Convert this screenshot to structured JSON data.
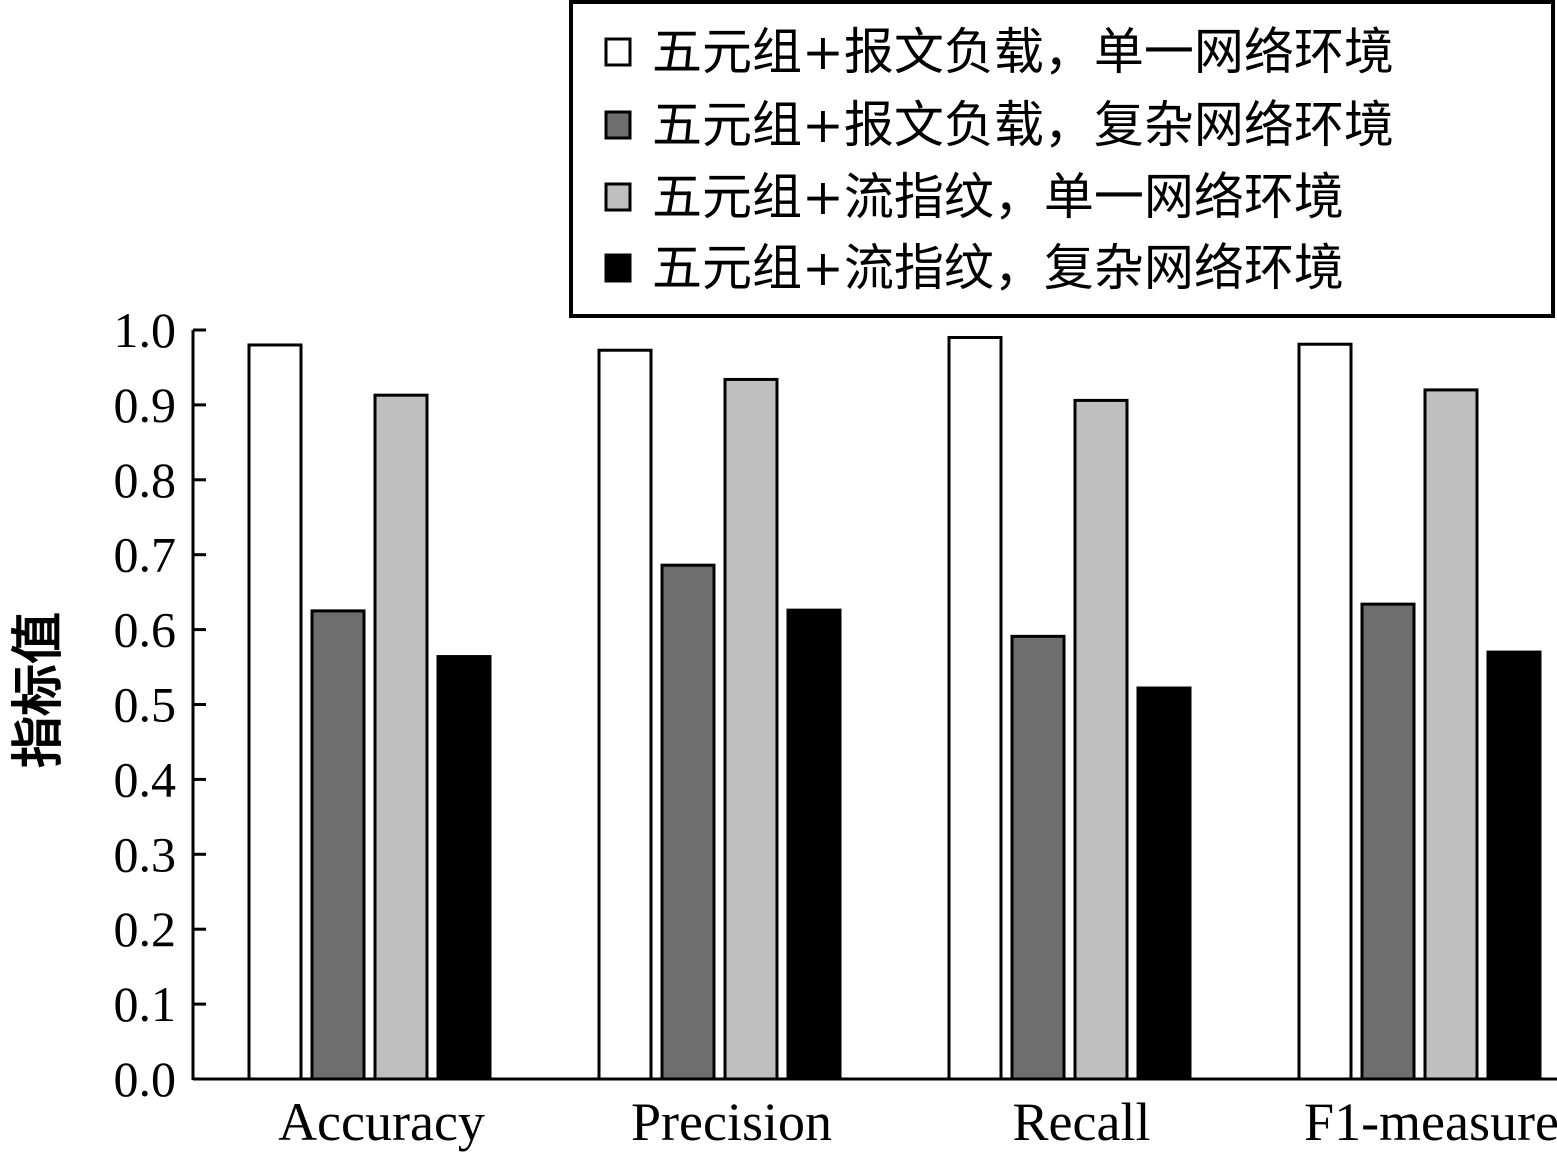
{
  "chart_data": {
    "type": "bar",
    "title": "",
    "xlabel": "",
    "ylabel": "指标值",
    "ylim": [
      0,
      1.0
    ],
    "yticks": [
      "0.0",
      "0.1",
      "0.2",
      "0.3",
      "0.4",
      "0.5",
      "0.6",
      "0.7",
      "0.8",
      "0.9",
      "1.0"
    ],
    "categories": [
      "Accuracy",
      "Precision",
      "Recall",
      "F1-measure"
    ],
    "legend_position": "top-right",
    "grid": false,
    "series": [
      {
        "name": "五元组+报文负载，单一网络环境",
        "color": "#ffffff",
        "values": [
          0.98,
          0.973,
          0.99,
          0.981
        ]
      },
      {
        "name": "五元组+报文负载，复杂网络环境",
        "color": "#6e6e6e",
        "values": [
          0.625,
          0.686,
          0.591,
          0.634
        ]
      },
      {
        "name": "五元组+流指纹，单一网络环境",
        "color": "#bfbfbf",
        "values": [
          0.913,
          0.934,
          0.906,
          0.92
        ]
      },
      {
        "name": "五元组+流指纹，复杂网络环境",
        "color": "#000000",
        "values": [
          0.564,
          0.626,
          0.522,
          0.57
        ]
      }
    ]
  }
}
